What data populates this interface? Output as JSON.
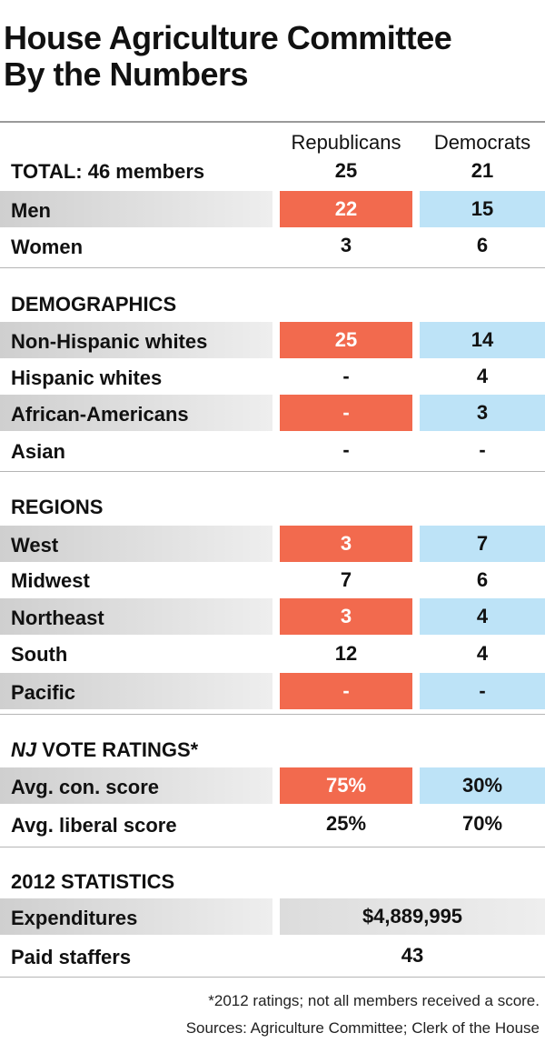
{
  "title_line1": "House Agriculture Committee",
  "title_line2": "By the Numbers",
  "columns": {
    "rep": "Republicans",
    "dem": "Democrats"
  },
  "total": {
    "label": "TOTAL: 46 members",
    "rep": "25",
    "dem": "21"
  },
  "sections": {
    "demographics": "DEMOGRAPHICS",
    "regions": "REGIONS",
    "vote_italic": "NJ",
    "vote_rest": " VOTE RATINGS*",
    "stats": "2012 STATISTICS"
  },
  "rows": {
    "men": {
      "label": "Men",
      "rep": "22",
      "dem": "15"
    },
    "women": {
      "label": "Women",
      "rep": "3",
      "dem": "6"
    },
    "nonhispanic": {
      "label": "Non-Hispanic whites",
      "rep": "25",
      "dem": "14"
    },
    "hispanic": {
      "label": "Hispanic whites",
      "rep": "-",
      "dem": "4"
    },
    "african": {
      "label": "African-Americans",
      "rep": "-",
      "dem": "3"
    },
    "asian": {
      "label": "Asian",
      "rep": "-",
      "dem": "-"
    },
    "west": {
      "label": "West",
      "rep": "3",
      "dem": "7"
    },
    "midwest": {
      "label": "Midwest",
      "rep": "7",
      "dem": "6"
    },
    "northeast": {
      "label": "Northeast",
      "rep": "3",
      "dem": "4"
    },
    "south": {
      "label": "South",
      "rep": "12",
      "dem": "4"
    },
    "pacific": {
      "label": "Pacific",
      "rep": "-",
      "dem": "-"
    },
    "con": {
      "label": "Avg. con. score",
      "rep": "75%",
      "dem": "30%"
    },
    "lib": {
      "label": "Avg. liberal score",
      "rep": "25%",
      "dem": "70%"
    },
    "expend": {
      "label": "Expenditures",
      "value": "$4,889,995"
    },
    "staff": {
      "label": "Paid staffers",
      "value": "43"
    }
  },
  "footnote": "*2012 ratings; not all members received a score.",
  "sources": "Sources: Agriculture Committee; Clerk of the House",
  "colors": {
    "republican": "#f26a4e",
    "democrat": "#bde3f7",
    "label_bg": "#d9d9d9"
  },
  "chart_data": {
    "type": "table",
    "title": "House Agriculture Committee By the Numbers",
    "columns": [
      "Republicans",
      "Democrats"
    ],
    "rows": [
      {
        "section": "",
        "label": "TOTAL: 46 members",
        "values": [
          "25",
          "21"
        ]
      },
      {
        "section": "",
        "label": "Men",
        "values": [
          "22",
          "15"
        ]
      },
      {
        "section": "",
        "label": "Women",
        "values": [
          "3",
          "6"
        ]
      },
      {
        "section": "DEMOGRAPHICS",
        "label": "Non-Hispanic whites",
        "values": [
          "25",
          "14"
        ]
      },
      {
        "section": "DEMOGRAPHICS",
        "label": "Hispanic whites",
        "values": [
          "-",
          "4"
        ]
      },
      {
        "section": "DEMOGRAPHICS",
        "label": "African-Americans",
        "values": [
          "-",
          "3"
        ]
      },
      {
        "section": "DEMOGRAPHICS",
        "label": "Asian",
        "values": [
          "-",
          "-"
        ]
      },
      {
        "section": "REGIONS",
        "label": "West",
        "values": [
          "3",
          "7"
        ]
      },
      {
        "section": "REGIONS",
        "label": "Midwest",
        "values": [
          "7",
          "6"
        ]
      },
      {
        "section": "REGIONS",
        "label": "Northeast",
        "values": [
          "3",
          "4"
        ]
      },
      {
        "section": "REGIONS",
        "label": "South",
        "values": [
          "12",
          "4"
        ]
      },
      {
        "section": "REGIONS",
        "label": "Pacific",
        "values": [
          "-",
          "-"
        ]
      },
      {
        "section": "NJ VOTE RATINGS*",
        "label": "Avg. con. score",
        "values": [
          "75%",
          "30%"
        ]
      },
      {
        "section": "NJ VOTE RATINGS*",
        "label": "Avg. liberal score",
        "values": [
          "25%",
          "70%"
        ]
      },
      {
        "section": "2012 STATISTICS",
        "label": "Expenditures",
        "values": [
          "$4,889,995"
        ]
      },
      {
        "section": "2012 STATISTICS",
        "label": "Paid staffers",
        "values": [
          "43"
        ]
      }
    ]
  }
}
